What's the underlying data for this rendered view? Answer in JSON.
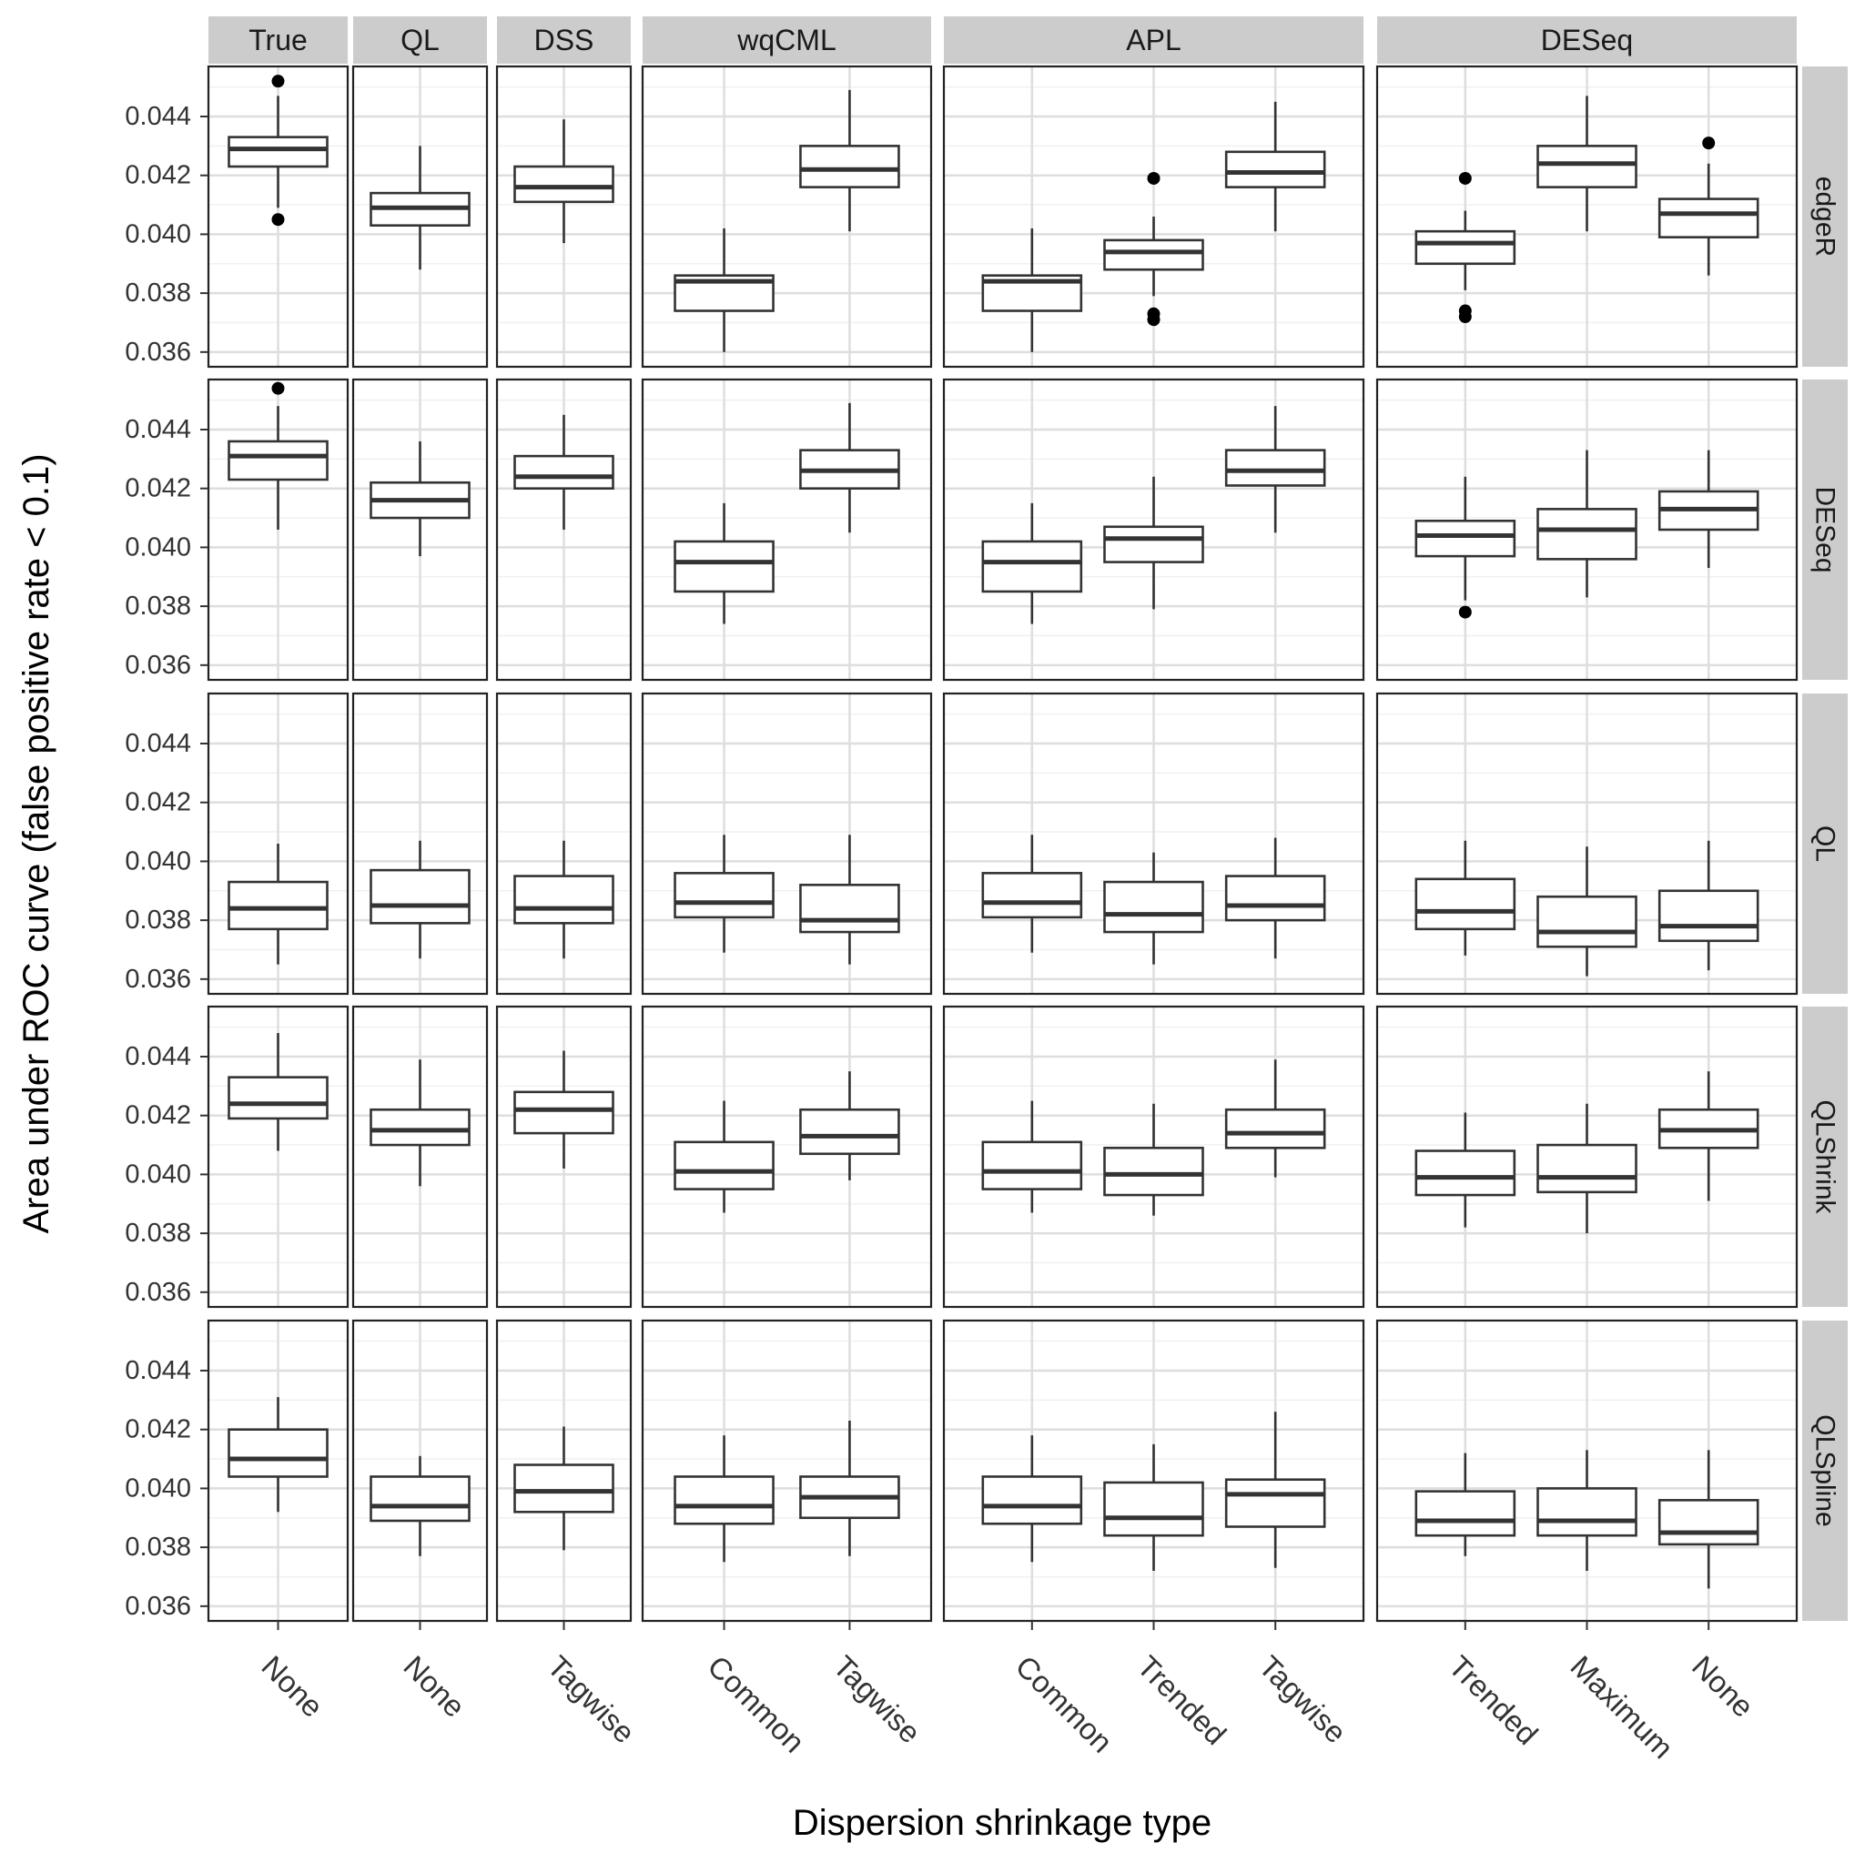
{
  "chart_data": {
    "type": "boxplot",
    "xlabel": "Dispersion shrinkage type",
    "ylabel": "Area under ROC curve (false positive rate < 0.1)",
    "ylim": [
      0.0355,
      0.0457
    ],
    "yticks": [
      0.036,
      0.038,
      0.04,
      0.042,
      0.044
    ],
    "ytick_labels": [
      "0.036",
      "0.038",
      "0.040",
      "0.042",
      "0.044"
    ],
    "grid": true,
    "column_facets": [
      {
        "label": "True",
        "categories": [
          "None"
        ]
      },
      {
        "label": "QL",
        "categories": [
          "None"
        ]
      },
      {
        "label": "DSS",
        "categories": [
          "Tagwise"
        ]
      },
      {
        "label": "wqCML",
        "categories": [
          "Common",
          "Tagwise"
        ]
      },
      {
        "label": "APL",
        "categories": [
          "Common",
          "Trended",
          "Tagwise"
        ]
      },
      {
        "label": "DESeq",
        "categories": [
          "Trended",
          "Maximum",
          "None"
        ]
      }
    ],
    "row_facets": [
      {
        "label": "edgeR",
        "boxes": [
          [
            [
              0.0409,
              0.0423,
              0.0429,
              0.0433,
              0.0447,
              [
                0.0452,
                0.0405
              ]
            ]
          ],
          [
            [
              0.0388,
              0.0403,
              0.0409,
              0.0414,
              0.043,
              []
            ]
          ],
          [
            [
              0.0397,
              0.0411,
              0.0416,
              0.0423,
              0.0439,
              []
            ]
          ],
          [
            [
              0.036,
              0.0374,
              0.0384,
              0.0386,
              0.0402,
              []
            ],
            [
              0.0401,
              0.0416,
              0.0422,
              0.043,
              0.0449,
              []
            ]
          ],
          [
            [
              0.036,
              0.0374,
              0.0384,
              0.0386,
              0.0402,
              []
            ],
            [
              0.0379,
              0.0388,
              0.0394,
              0.0398,
              0.0406,
              [
                0.0419,
                0.0373,
                0.0371
              ]
            ],
            [
              0.0401,
              0.0416,
              0.0421,
              0.0428,
              0.0445,
              []
            ]
          ],
          [
            [
              0.0381,
              0.039,
              0.0397,
              0.0401,
              0.0408,
              [
                0.0419,
                0.0374,
                0.0372
              ]
            ],
            [
              0.0401,
              0.0416,
              0.0424,
              0.043,
              0.0447,
              []
            ],
            [
              0.0386,
              0.0399,
              0.0407,
              0.0412,
              0.0424,
              [
                0.0431
              ]
            ]
          ]
        ]
      },
      {
        "label": "DESeq",
        "boxes": [
          [
            [
              0.0406,
              0.0423,
              0.0431,
              0.0436,
              0.0448,
              [
                0.0454
              ]
            ]
          ],
          [
            [
              0.0397,
              0.041,
              0.0416,
              0.0422,
              0.0436,
              []
            ]
          ],
          [
            [
              0.0406,
              0.042,
              0.0424,
              0.0431,
              0.0445,
              []
            ]
          ],
          [
            [
              0.0374,
              0.0385,
              0.0395,
              0.0402,
              0.0415,
              []
            ],
            [
              0.0405,
              0.042,
              0.0426,
              0.0433,
              0.0449,
              []
            ]
          ],
          [
            [
              0.0374,
              0.0385,
              0.0395,
              0.0402,
              0.0415,
              []
            ],
            [
              0.0379,
              0.0395,
              0.0403,
              0.0407,
              0.0424,
              []
            ],
            [
              0.0405,
              0.0421,
              0.0426,
              0.0433,
              0.0448,
              []
            ]
          ],
          [
            [
              0.0382,
              0.0397,
              0.0404,
              0.0409,
              0.0424,
              [
                0.0378
              ]
            ],
            [
              0.0383,
              0.0396,
              0.0406,
              0.0413,
              0.0433,
              []
            ],
            [
              0.0393,
              0.0406,
              0.0413,
              0.0419,
              0.0433,
              []
            ]
          ]
        ]
      },
      {
        "label": "QL",
        "boxes": [
          [
            [
              0.0365,
              0.0377,
              0.0384,
              0.0393,
              0.0406,
              []
            ]
          ],
          [
            [
              0.0367,
              0.0379,
              0.0385,
              0.0397,
              0.0407,
              []
            ]
          ],
          [
            [
              0.0367,
              0.0379,
              0.0384,
              0.0395,
              0.0407,
              []
            ]
          ],
          [
            [
              0.0369,
              0.0381,
              0.0386,
              0.0396,
              0.0409,
              []
            ],
            [
              0.0365,
              0.0376,
              0.038,
              0.0392,
              0.0409,
              []
            ]
          ],
          [
            [
              0.0369,
              0.0381,
              0.0386,
              0.0396,
              0.0409,
              []
            ],
            [
              0.0365,
              0.0376,
              0.0382,
              0.0393,
              0.0403,
              []
            ],
            [
              0.0367,
              0.038,
              0.0385,
              0.0395,
              0.0408,
              []
            ]
          ],
          [
            [
              0.0368,
              0.0377,
              0.0383,
              0.0394,
              0.0407,
              []
            ],
            [
              0.0361,
              0.0371,
              0.0376,
              0.0388,
              0.0405,
              []
            ],
            [
              0.0363,
              0.0373,
              0.0378,
              0.039,
              0.0407,
              []
            ]
          ]
        ]
      },
      {
        "label": "QLShrink",
        "boxes": [
          [
            [
              0.0408,
              0.0419,
              0.0424,
              0.0433,
              0.0448,
              []
            ]
          ],
          [
            [
              0.0396,
              0.041,
              0.0415,
              0.0422,
              0.0439,
              []
            ]
          ],
          [
            [
              0.0402,
              0.0414,
              0.0422,
              0.0428,
              0.0442,
              []
            ]
          ],
          [
            [
              0.0387,
              0.0395,
              0.0401,
              0.0411,
              0.0425,
              []
            ],
            [
              0.0398,
              0.0407,
              0.0413,
              0.0422,
              0.0435,
              []
            ]
          ],
          [
            [
              0.0387,
              0.0395,
              0.0401,
              0.0411,
              0.0425,
              []
            ],
            [
              0.0386,
              0.0393,
              0.04,
              0.0409,
              0.0424,
              []
            ],
            [
              0.0399,
              0.0409,
              0.0414,
              0.0422,
              0.0439,
              []
            ]
          ],
          [
            [
              0.0382,
              0.0393,
              0.0399,
              0.0408,
              0.0421,
              []
            ],
            [
              0.038,
              0.0394,
              0.0399,
              0.041,
              0.0424,
              []
            ],
            [
              0.0391,
              0.0409,
              0.0415,
              0.0422,
              0.0435,
              []
            ]
          ]
        ]
      },
      {
        "label": "QLSpline",
        "boxes": [
          [
            [
              0.0392,
              0.0404,
              0.041,
              0.042,
              0.0431,
              []
            ]
          ],
          [
            [
              0.0377,
              0.0389,
              0.0394,
              0.0404,
              0.0411,
              []
            ]
          ],
          [
            [
              0.0379,
              0.0392,
              0.0399,
              0.0408,
              0.0421,
              []
            ]
          ],
          [
            [
              0.0375,
              0.0388,
              0.0394,
              0.0404,
              0.0418,
              []
            ],
            [
              0.0377,
              0.039,
              0.0397,
              0.0404,
              0.0423,
              []
            ]
          ],
          [
            [
              0.0375,
              0.0388,
              0.0394,
              0.0404,
              0.0418,
              []
            ],
            [
              0.0372,
              0.0384,
              0.039,
              0.0402,
              0.0415,
              []
            ],
            [
              0.0373,
              0.0387,
              0.0398,
              0.0403,
              0.0426,
              []
            ]
          ],
          [
            [
              0.0377,
              0.0384,
              0.0389,
              0.0399,
              0.0412,
              []
            ],
            [
              0.0372,
              0.0384,
              0.0389,
              0.04,
              0.0413,
              []
            ],
            [
              0.0366,
              0.0381,
              0.0385,
              0.0396,
              0.0413,
              []
            ]
          ]
        ]
      }
    ]
  }
}
